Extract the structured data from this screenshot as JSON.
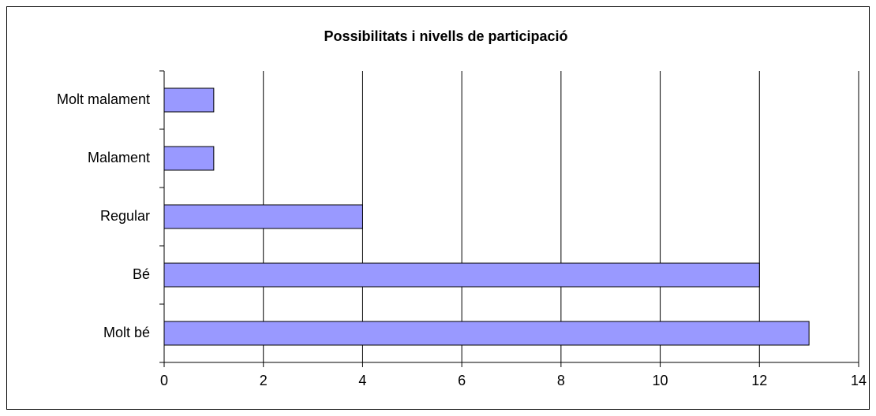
{
  "chart_data": {
    "type": "bar",
    "orientation": "horizontal",
    "title": "Possibilitats i nivells de participació",
    "categories": [
      "Molt malament",
      "Malament",
      "Regular",
      "Bé",
      "Molt bé"
    ],
    "values": [
      1,
      1,
      4,
      12,
      13
    ],
    "color": "#9999ff",
    "xlim": [
      0,
      14
    ],
    "xticks": [
      0,
      2,
      4,
      6,
      8,
      10,
      12,
      14
    ],
    "grid": true
  }
}
